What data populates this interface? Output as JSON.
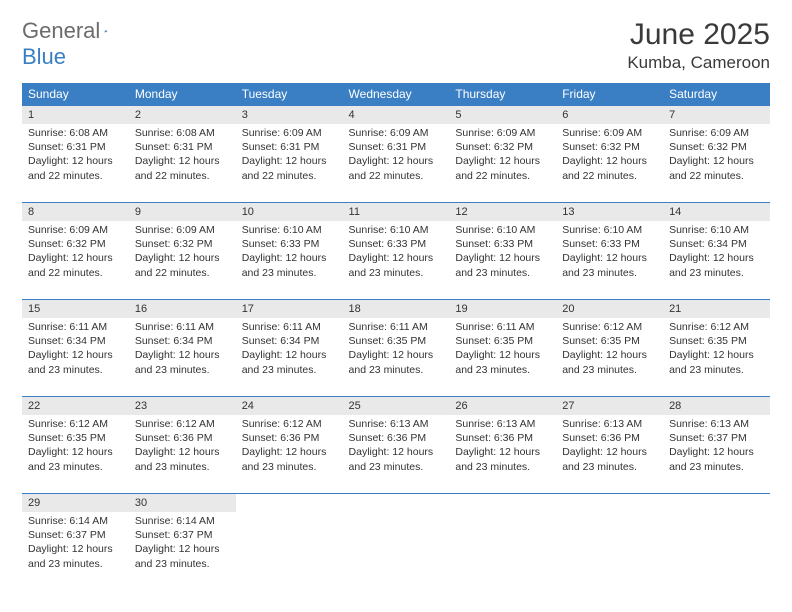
{
  "logo": {
    "word1": "General",
    "word2": "Blue"
  },
  "title": "June 2025",
  "location": "Kumba, Cameroon",
  "header_bg": "#3a7fc4",
  "daynum_bg": "#e9e9e9",
  "weekdays": [
    "Sunday",
    "Monday",
    "Tuesday",
    "Wednesday",
    "Thursday",
    "Friday",
    "Saturday"
  ],
  "weeks": [
    {
      "nums": [
        "1",
        "2",
        "3",
        "4",
        "5",
        "6",
        "7"
      ],
      "cells": [
        {
          "sr": "6:08 AM",
          "ss": "6:31 PM",
          "dl": "12 hours and 22 minutes."
        },
        {
          "sr": "6:08 AM",
          "ss": "6:31 PM",
          "dl": "12 hours and 22 minutes."
        },
        {
          "sr": "6:09 AM",
          "ss": "6:31 PM",
          "dl": "12 hours and 22 minutes."
        },
        {
          "sr": "6:09 AM",
          "ss": "6:31 PM",
          "dl": "12 hours and 22 minutes."
        },
        {
          "sr": "6:09 AM",
          "ss": "6:32 PM",
          "dl": "12 hours and 22 minutes."
        },
        {
          "sr": "6:09 AM",
          "ss": "6:32 PM",
          "dl": "12 hours and 22 minutes."
        },
        {
          "sr": "6:09 AM",
          "ss": "6:32 PM",
          "dl": "12 hours and 22 minutes."
        }
      ]
    },
    {
      "nums": [
        "8",
        "9",
        "10",
        "11",
        "12",
        "13",
        "14"
      ],
      "cells": [
        {
          "sr": "6:09 AM",
          "ss": "6:32 PM",
          "dl": "12 hours and 22 minutes."
        },
        {
          "sr": "6:09 AM",
          "ss": "6:32 PM",
          "dl": "12 hours and 22 minutes."
        },
        {
          "sr": "6:10 AM",
          "ss": "6:33 PM",
          "dl": "12 hours and 23 minutes."
        },
        {
          "sr": "6:10 AM",
          "ss": "6:33 PM",
          "dl": "12 hours and 23 minutes."
        },
        {
          "sr": "6:10 AM",
          "ss": "6:33 PM",
          "dl": "12 hours and 23 minutes."
        },
        {
          "sr": "6:10 AM",
          "ss": "6:33 PM",
          "dl": "12 hours and 23 minutes."
        },
        {
          "sr": "6:10 AM",
          "ss": "6:34 PM",
          "dl": "12 hours and 23 minutes."
        }
      ]
    },
    {
      "nums": [
        "15",
        "16",
        "17",
        "18",
        "19",
        "20",
        "21"
      ],
      "cells": [
        {
          "sr": "6:11 AM",
          "ss": "6:34 PM",
          "dl": "12 hours and 23 minutes."
        },
        {
          "sr": "6:11 AM",
          "ss": "6:34 PM",
          "dl": "12 hours and 23 minutes."
        },
        {
          "sr": "6:11 AM",
          "ss": "6:34 PM",
          "dl": "12 hours and 23 minutes."
        },
        {
          "sr": "6:11 AM",
          "ss": "6:35 PM",
          "dl": "12 hours and 23 minutes."
        },
        {
          "sr": "6:11 AM",
          "ss": "6:35 PM",
          "dl": "12 hours and 23 minutes."
        },
        {
          "sr": "6:12 AM",
          "ss": "6:35 PM",
          "dl": "12 hours and 23 minutes."
        },
        {
          "sr": "6:12 AM",
          "ss": "6:35 PM",
          "dl": "12 hours and 23 minutes."
        }
      ]
    },
    {
      "nums": [
        "22",
        "23",
        "24",
        "25",
        "26",
        "27",
        "28"
      ],
      "cells": [
        {
          "sr": "6:12 AM",
          "ss": "6:35 PM",
          "dl": "12 hours and 23 minutes."
        },
        {
          "sr": "6:12 AM",
          "ss": "6:36 PM",
          "dl": "12 hours and 23 minutes."
        },
        {
          "sr": "6:12 AM",
          "ss": "6:36 PM",
          "dl": "12 hours and 23 minutes."
        },
        {
          "sr": "6:13 AM",
          "ss": "6:36 PM",
          "dl": "12 hours and 23 minutes."
        },
        {
          "sr": "6:13 AM",
          "ss": "6:36 PM",
          "dl": "12 hours and 23 minutes."
        },
        {
          "sr": "6:13 AM",
          "ss": "6:36 PM",
          "dl": "12 hours and 23 minutes."
        },
        {
          "sr": "6:13 AM",
          "ss": "6:37 PM",
          "dl": "12 hours and 23 minutes."
        }
      ]
    },
    {
      "nums": [
        "29",
        "30",
        "",
        "",
        "",
        "",
        ""
      ],
      "cells": [
        {
          "sr": "6:14 AM",
          "ss": "6:37 PM",
          "dl": "12 hours and 23 minutes."
        },
        {
          "sr": "6:14 AM",
          "ss": "6:37 PM",
          "dl": "12 hours and 23 minutes."
        },
        null,
        null,
        null,
        null,
        null
      ]
    }
  ],
  "labels": {
    "sunrise": "Sunrise:",
    "sunset": "Sunset:",
    "daylight": "Daylight:"
  }
}
